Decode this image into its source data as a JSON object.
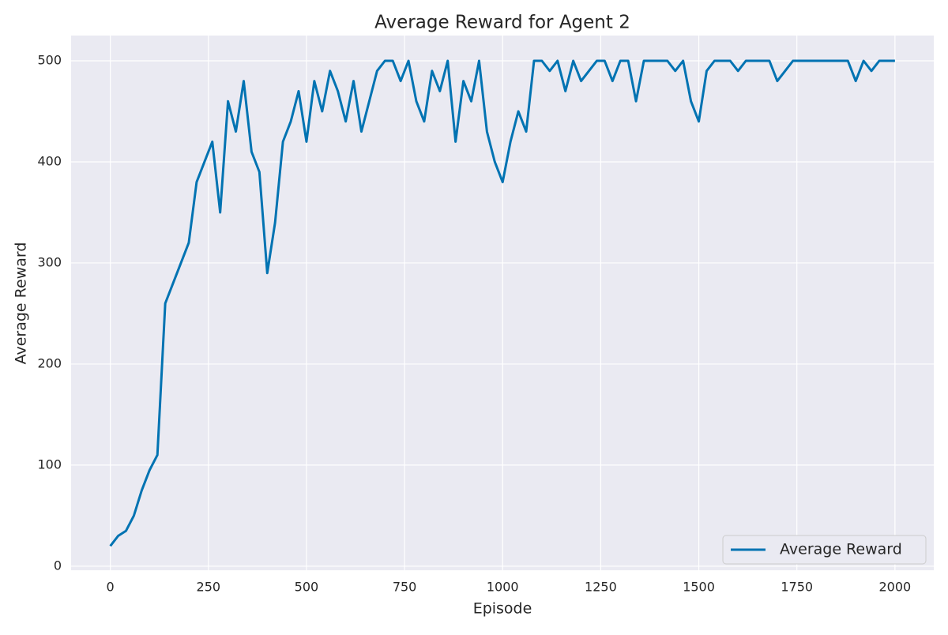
{
  "chart_data": {
    "type": "line",
    "title": "Average Reward for Agent 2",
    "xlabel": "Episode",
    "ylabel": "Average Reward",
    "x": [
      0,
      20,
      40,
      60,
      80,
      100,
      120,
      140,
      160,
      180,
      200,
      220,
      240,
      260,
      280,
      300,
      320,
      340,
      360,
      380,
      400,
      420,
      440,
      460,
      480,
      500,
      520,
      540,
      560,
      580,
      600,
      620,
      640,
      660,
      680,
      700,
      720,
      740,
      760,
      780,
      800,
      820,
      840,
      860,
      880,
      900,
      920,
      940,
      960,
      980,
      1000,
      1020,
      1040,
      1060,
      1080,
      1100,
      1120,
      1140,
      1160,
      1180,
      1200,
      1220,
      1240,
      1260,
      1280,
      1300,
      1320,
      1340,
      1360,
      1380,
      1400,
      1420,
      1440,
      1460,
      1480,
      1500,
      1520,
      1540,
      1560,
      1580,
      1600,
      1620,
      1640,
      1660,
      1680,
      1700,
      1720,
      1740,
      1760,
      1780,
      1800,
      1820,
      1840,
      1860,
      1880,
      1900,
      1920,
      1940,
      1960,
      1980,
      2000
    ],
    "series": [
      {
        "name": "Average Reward",
        "color": "#0173b2",
        "values": [
          20,
          30,
          35,
          50,
          75,
          95,
          110,
          260,
          280,
          300,
          320,
          380,
          400,
          420,
          350,
          460,
          430,
          480,
          410,
          390,
          290,
          340,
          420,
          440,
          470,
          420,
          480,
          450,
          490,
          470,
          440,
          480,
          430,
          460,
          490,
          500,
          500,
          480,
          500,
          460,
          440,
          490,
          470,
          500,
          420,
          480,
          460,
          500,
          430,
          400,
          380,
          420,
          450,
          430,
          500,
          500,
          490,
          500,
          470,
          500,
          480,
          490,
          500,
          500,
          480,
          500,
          500,
          460,
          500,
          500,
          500,
          500,
          490,
          500,
          460,
          440,
          490,
          500,
          500,
          500,
          490,
          500,
          500,
          500,
          500,
          480,
          490,
          500,
          500,
          500,
          500,
          500,
          500,
          500,
          500,
          480,
          500,
          490,
          500,
          500,
          500
        ]
      }
    ],
    "xlim": [
      -99.95,
      2098.95
    ],
    "ylim": [
      -4,
      525
    ],
    "xticks": [
      0,
      250,
      500,
      750,
      1000,
      1250,
      1500,
      1750,
      2000
    ],
    "yticks": [
      0,
      100,
      200,
      300,
      400,
      500
    ],
    "grid": true,
    "legend": "lower right"
  }
}
